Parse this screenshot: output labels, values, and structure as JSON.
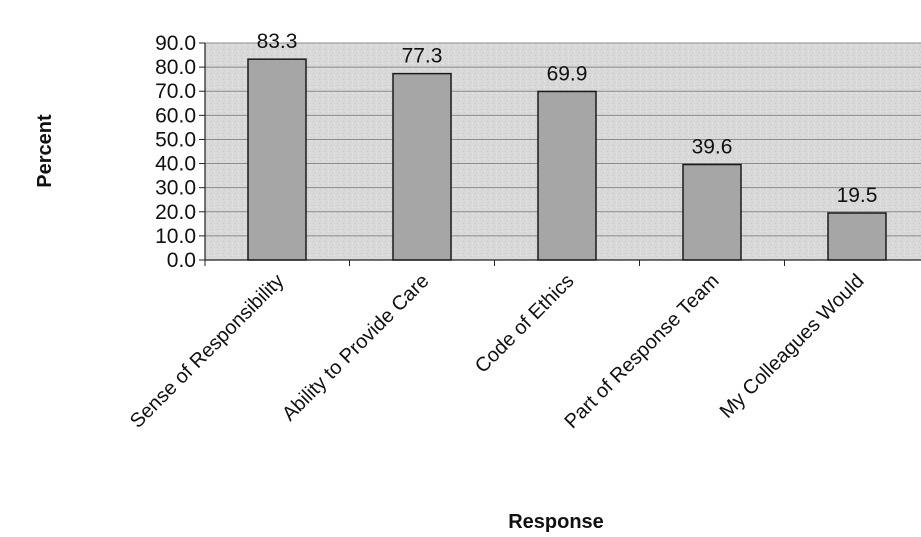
{
  "chart_data": {
    "type": "bar",
    "title": "",
    "xlabel": "Response",
    "ylabel": "Percent",
    "categories": [
      "Sense of Responsibility",
      "Ability to Provide Care",
      "Code of Ethics",
      "Part of Response Team",
      "My Colleagues Would"
    ],
    "values": [
      83.3,
      77.3,
      69.9,
      39.6,
      19.5
    ],
    "value_labels": [
      "83.3",
      "77.3",
      "69.9",
      "39.6",
      "19.5"
    ],
    "ylim": [
      0,
      90
    ],
    "yticks": [
      0,
      10,
      20,
      30,
      40,
      50,
      60,
      70,
      80,
      90
    ],
    "ytick_labels": [
      "0.0",
      "10.0",
      "20.0",
      "30.0",
      "40.0",
      "50.0",
      "60.0",
      "70.0",
      "80.0",
      "90.0"
    ],
    "grid": true,
    "legend": "none",
    "colors": {
      "bar_fill": "#a6a6a6",
      "bar_stroke": "#1a1a1a",
      "plot_background": "#d9d9d9",
      "gridline": "#8c8c8c"
    }
  }
}
